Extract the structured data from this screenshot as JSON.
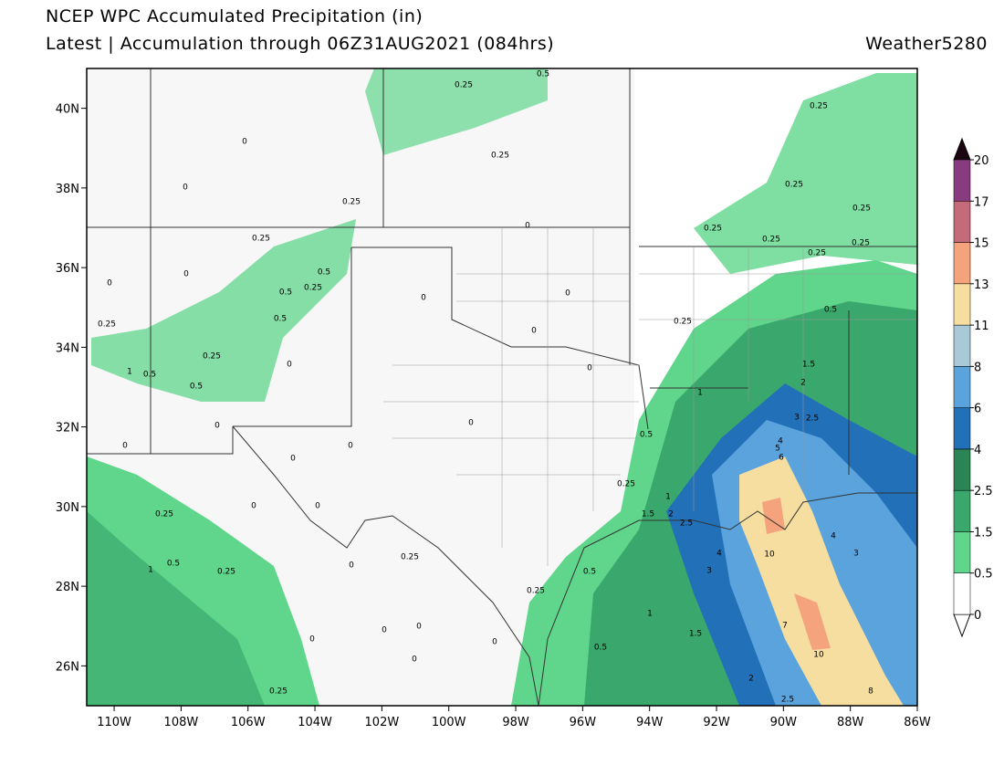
{
  "header": {
    "title": "NCEP WPC Accumulated Precipitation (in)",
    "subtitle": "Latest | Accumulation through 06Z31AUG2021 (084hrs)",
    "brand": "Weather5280"
  },
  "map": {
    "xlim": [
      -110.82,
      -86
    ],
    "ylim": [
      25,
      41
    ],
    "xticks": [
      {
        "value": -110,
        "label": "110W"
      },
      {
        "value": -108,
        "label": "108W"
      },
      {
        "value": -106,
        "label": "106W"
      },
      {
        "value": -104,
        "label": "104W"
      },
      {
        "value": -102,
        "label": "102W"
      },
      {
        "value": -100,
        "label": "100W"
      },
      {
        "value": -98,
        "label": "98W"
      },
      {
        "value": -96,
        "label": "96W"
      },
      {
        "value": -94,
        "label": "94W"
      },
      {
        "value": -92,
        "label": "92W"
      },
      {
        "value": -90,
        "label": "90W"
      },
      {
        "value": -88,
        "label": "88W"
      },
      {
        "value": -86,
        "label": "86W"
      }
    ],
    "yticks": [
      {
        "value": 26,
        "label": "26N"
      },
      {
        "value": 28,
        "label": "28N"
      },
      {
        "value": 30,
        "label": "30N"
      },
      {
        "value": 32,
        "label": "32N"
      },
      {
        "value": 34,
        "label": "34N"
      },
      {
        "value": 36,
        "label": "36N"
      },
      {
        "value": 38,
        "label": "38N"
      },
      {
        "value": 40,
        "label": "40N"
      }
    ],
    "contour_labels": [
      0.25,
      0.5,
      0.25,
      0.25,
      0,
      0,
      0.25,
      0,
      0.25,
      0.25,
      0.25,
      0.25,
      0.25,
      0.25,
      0.25,
      0,
      0,
      0.5,
      0.25,
      0.5,
      0,
      0,
      0.5,
      0.25,
      0.25,
      0.5,
      0,
      0.25,
      0,
      1,
      0.5,
      0.5,
      0,
      1.5,
      2,
      1,
      3,
      2.5,
      0,
      0,
      4,
      5,
      6,
      0,
      0.5,
      0,
      0,
      0.25,
      1,
      0,
      0,
      0.25,
      1.5,
      2,
      2.5,
      4,
      3,
      4,
      10,
      0.25,
      0,
      1,
      0.5,
      0.25,
      0.5,
      3,
      0.25,
      1,
      7,
      0,
      0,
      0,
      1.5,
      0.5,
      10,
      0,
      0,
      2,
      8,
      0.25,
      2.5
    ]
  },
  "colorbar": {
    "levels": [
      0,
      0.5,
      1.5,
      2.5,
      4,
      6,
      8,
      11,
      13,
      15,
      17,
      20
    ],
    "colors": [
      "#ffffff",
      "#5fd68b",
      "#3aa86c",
      "#2a8454",
      "#2270b8",
      "#5aa3dc",
      "#a9c9d6",
      "#f6dea0",
      "#f4a37c",
      "#c46a78",
      "#8a3b80"
    ]
  }
}
